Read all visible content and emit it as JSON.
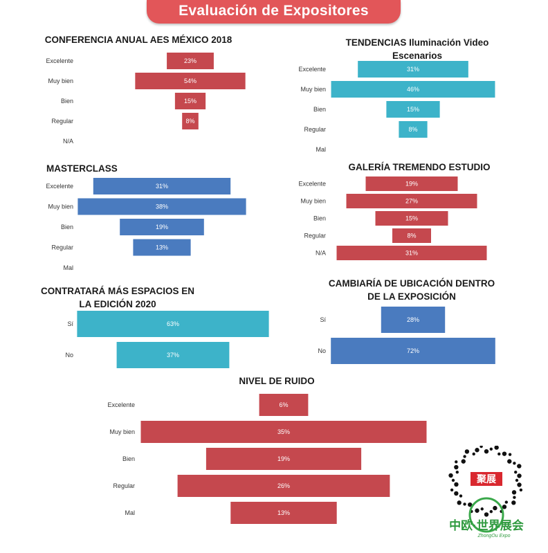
{
  "page": {
    "banner_title": "Evaluación de Expositores"
  },
  "colors": {
    "banner": "#e25659",
    "red": "#c5484e",
    "teal": "#3db3c9",
    "blue": "#4a7bbf"
  },
  "chart_data": [
    {
      "id": "conferencia",
      "type": "bar",
      "orientation": "horizontal-centered",
      "title": "CONFERENCIA ANUAL AES  MÉXICO 2018",
      "categories": [
        "Excelente",
        "Muy bien",
        "Bien",
        "Regular",
        "N/A"
      ],
      "values": [
        23,
        54,
        15,
        8,
        0
      ],
      "value_labels": [
        "23%",
        "54%",
        "15%",
        "8%",
        ""
      ],
      "unit": "%",
      "color": "#c5484e"
    },
    {
      "id": "tendencias",
      "type": "bar",
      "orientation": "horizontal-centered",
      "title": "TENDENCIAS Iluminación Video Escenarios",
      "categories": [
        "Excelente",
        "Muy bien",
        "Bien",
        "Regular",
        "Mal"
      ],
      "values": [
        31,
        46,
        15,
        8,
        0
      ],
      "value_labels": [
        "31%",
        "46%",
        "15%",
        "8%",
        ""
      ],
      "unit": "%",
      "color": "#3db3c9"
    },
    {
      "id": "masterclass",
      "type": "bar",
      "orientation": "horizontal-centered",
      "title": "MASTERCLASS",
      "categories": [
        "Excelente",
        "Muy bien",
        "Bien",
        "Regular",
        "Mal"
      ],
      "values": [
        31,
        38,
        19,
        13,
        0
      ],
      "value_labels": [
        "31%",
        "38%",
        "19%",
        "13%",
        ""
      ],
      "unit": "%",
      "color": "#4a7bbf"
    },
    {
      "id": "galeria",
      "type": "bar",
      "orientation": "horizontal-centered",
      "title": "GALERÍA TREMENDO ESTUDIO",
      "categories": [
        "Excelente",
        "Muy bien",
        "Bien",
        "Regular",
        "N/A"
      ],
      "values": [
        19,
        27,
        15,
        8,
        31
      ],
      "value_labels": [
        "19%",
        "27%",
        "15%",
        "8%",
        "31%"
      ],
      "unit": "%",
      "color": "#c5484e"
    },
    {
      "id": "contratara",
      "type": "bar",
      "orientation": "horizontal-centered",
      "title": "CONTRATARÁ MÁS ESPACIOS EN LA EDICIÓN 2020",
      "categories": [
        "Sí",
        "No"
      ],
      "values": [
        63,
        37
      ],
      "value_labels": [
        "63%",
        "37%"
      ],
      "unit": "%",
      "color": "#3db3c9"
    },
    {
      "id": "cambiaria",
      "type": "bar",
      "orientation": "horizontal-centered",
      "title": "CAMBIARÍA DE UBICACIÓN DENTRO DE LA EXPOSICIÓN",
      "categories": [
        "Sí",
        "No"
      ],
      "values": [
        28,
        72
      ],
      "value_labels": [
        "28%",
        "72%"
      ],
      "unit": "%",
      "color": "#4a7bbf"
    },
    {
      "id": "ruido",
      "type": "bar",
      "orientation": "horizontal-centered",
      "title": "NIVEL DE RUIDO",
      "categories": [
        "Excelente",
        "Muy bien",
        "Bien",
        "Regular",
        "Mal"
      ],
      "values": [
        6,
        35,
        19,
        26,
        13
      ],
      "value_labels": [
        "6%",
        "35%",
        "19%",
        "26%",
        "13%"
      ],
      "unit": "%",
      "color": "#c5484e"
    }
  ],
  "logo": {
    "badge": "聚展",
    "name": "中欧·世界展会",
    "sub": "ZhongOu Expo"
  }
}
